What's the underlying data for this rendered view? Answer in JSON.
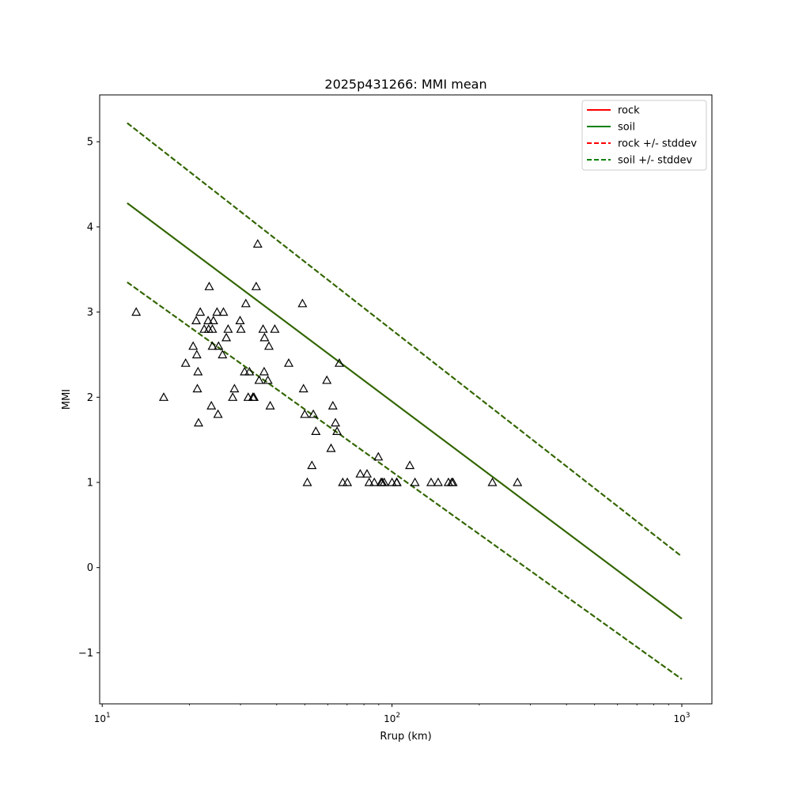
{
  "chart_data": {
    "type": "scatter",
    "title": "2025p431266: MMI mean",
    "xlabel": "Rrup (km)",
    "ylabel": "MMI",
    "xscale": "log",
    "xlim": [
      9.8,
      1270
    ],
    "ylim": [
      -1.6,
      5.55
    ],
    "x_ticks": [
      {
        "value": 10,
        "base": "10",
        "exp": "1"
      },
      {
        "value": 100,
        "base": "10",
        "exp": "2"
      },
      {
        "value": 1000,
        "base": "10",
        "exp": "3"
      }
    ],
    "y_ticks": [
      {
        "value": -1,
        "label": "−1"
      },
      {
        "value": 0,
        "label": "0"
      },
      {
        "value": 1,
        "label": "1"
      },
      {
        "value": 2,
        "label": "2"
      },
      {
        "value": 3,
        "label": "3"
      },
      {
        "value": 4,
        "label": "4"
      },
      {
        "value": 5,
        "label": "5"
      }
    ],
    "grid": false,
    "legend_position": "top-right",
    "series": [
      {
        "name": "rock",
        "style": "solid",
        "color": "#ff0000",
        "x": [
          12.2,
          1000
        ],
        "y": [
          4.28,
          -0.6
        ]
      },
      {
        "name": "soil",
        "style": "solid",
        "color": "#008000",
        "x": [
          12.2,
          1000
        ],
        "y": [
          4.28,
          -0.6
        ]
      },
      {
        "name": "rock +/- stddev",
        "style": "dashed",
        "color": "#ff0000",
        "x": [
          12.2,
          1000
        ],
        "upper": [
          5.22,
          0.13
        ],
        "lower": [
          3.35,
          -1.31
        ]
      },
      {
        "name": "soil +/- stddev",
        "style": "dashed",
        "color": "#008000",
        "x": [
          12.2,
          1000
        ],
        "upper": [
          5.22,
          0.13
        ],
        "lower": [
          3.35,
          -1.31
        ]
      }
    ],
    "rendered_line_color": "#336600",
    "observations": {
      "marker": "triangle",
      "color": "#000000",
      "points": [
        [
          13.1,
          3.0
        ],
        [
          16.3,
          2.0
        ],
        [
          19.4,
          2.4
        ],
        [
          20.6,
          2.6
        ],
        [
          21.1,
          2.9
        ],
        [
          21.2,
          2.5
        ],
        [
          21.3,
          2.1
        ],
        [
          21.4,
          2.3
        ],
        [
          21.5,
          1.7
        ],
        [
          21.8,
          3.0
        ],
        [
          22.5,
          2.8
        ],
        [
          23.2,
          2.9
        ],
        [
          23.3,
          2.8
        ],
        [
          23.4,
          3.3
        ],
        [
          23.8,
          1.9
        ],
        [
          24.0,
          2.8
        ],
        [
          24.0,
          2.6
        ],
        [
          24.2,
          2.9
        ],
        [
          24.9,
          3.0
        ],
        [
          25.1,
          1.8
        ],
        [
          25.2,
          2.6
        ],
        [
          26.0,
          2.5
        ],
        [
          26.2,
          3.0
        ],
        [
          26.8,
          2.7
        ],
        [
          27.2,
          2.8
        ],
        [
          28.2,
          2.0
        ],
        [
          28.6,
          2.1
        ],
        [
          29.9,
          2.9
        ],
        [
          30.1,
          2.8
        ],
        [
          31.0,
          2.3
        ],
        [
          31.3,
          3.1
        ],
        [
          31.9,
          2.0
        ],
        [
          32.2,
          2.3
        ],
        [
          33.1,
          2.0
        ],
        [
          33.4,
          2.0
        ],
        [
          34.0,
          3.3
        ],
        [
          34.4,
          3.8
        ],
        [
          34.8,
          2.2
        ],
        [
          35.9,
          2.8
        ],
        [
          36.2,
          2.3
        ],
        [
          36.3,
          2.7
        ],
        [
          37.3,
          2.2
        ],
        [
          37.6,
          2.6
        ],
        [
          38.0,
          1.9
        ],
        [
          39.4,
          2.8
        ],
        [
          44.0,
          2.4
        ],
        [
          49.1,
          3.1
        ],
        [
          49.5,
          2.1
        ],
        [
          50.0,
          1.8
        ],
        [
          51.0,
          1.0
        ],
        [
          52.9,
          1.2
        ],
        [
          53.5,
          1.8
        ],
        [
          54.6,
          1.6
        ],
        [
          59.6,
          2.2
        ],
        [
          61.6,
          1.4
        ],
        [
          62.5,
          1.9
        ],
        [
          63.8,
          1.7
        ],
        [
          64.6,
          1.6
        ],
        [
          65.8,
          2.4
        ],
        [
          67.6,
          1.0
        ],
        [
          70.1,
          1.0
        ],
        [
          77.7,
          1.1
        ],
        [
          82.0,
          1.1
        ],
        [
          83.4,
          1.0
        ],
        [
          86.9,
          1.0
        ],
        [
          89.7,
          1.3
        ],
        [
          91.7,
          1.0
        ],
        [
          92.5,
          1.0
        ],
        [
          94.0,
          1.0
        ],
        [
          100.0,
          1.0
        ],
        [
          103.7,
          1.0
        ],
        [
          104.0,
          1.0
        ],
        [
          115.2,
          1.2
        ],
        [
          120.0,
          1.0
        ],
        [
          136.4,
          1.0
        ],
        [
          144.3,
          1.0
        ],
        [
          156.5,
          1.0
        ],
        [
          160.6,
          1.0
        ],
        [
          162.3,
          1.0
        ],
        [
          222.0,
          1.0
        ],
        [
          271.0,
          1.0
        ]
      ]
    }
  }
}
